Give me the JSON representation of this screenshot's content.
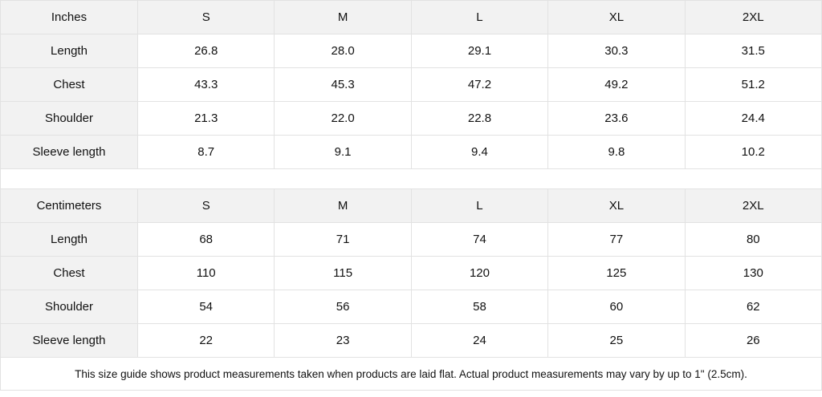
{
  "inches": {
    "unit": "Inches",
    "sizes": [
      "S",
      "M",
      "L",
      "XL",
      "2XL"
    ],
    "rows": [
      {
        "label": "Length",
        "values": [
          "26.8",
          "28.0",
          "29.1",
          "30.3",
          "31.5"
        ]
      },
      {
        "label": "Chest",
        "values": [
          "43.3",
          "45.3",
          "47.2",
          "49.2",
          "51.2"
        ]
      },
      {
        "label": "Shoulder",
        "values": [
          "21.3",
          "22.0",
          "22.8",
          "23.6",
          "24.4"
        ]
      },
      {
        "label": "Sleeve length",
        "values": [
          "8.7",
          "9.1",
          "9.4",
          "9.8",
          "10.2"
        ]
      }
    ]
  },
  "centimeters": {
    "unit": "Centimeters",
    "sizes": [
      "S",
      "M",
      "L",
      "XL",
      "2XL"
    ],
    "rows": [
      {
        "label": "Length",
        "values": [
          "68",
          "71",
          "74",
          "77",
          "80"
        ]
      },
      {
        "label": "Chest",
        "values": [
          "110",
          "115",
          "120",
          "125",
          "130"
        ]
      },
      {
        "label": "Shoulder",
        "values": [
          "54",
          "56",
          "58",
          "60",
          "62"
        ]
      },
      {
        "label": "Sleeve length",
        "values": [
          "22",
          "23",
          "24",
          "25",
          "26"
        ]
      }
    ]
  },
  "footnote": "This size guide shows product measurements taken when products are laid flat.  Actual product measurements may vary by up to 1\" (2.5cm)."
}
